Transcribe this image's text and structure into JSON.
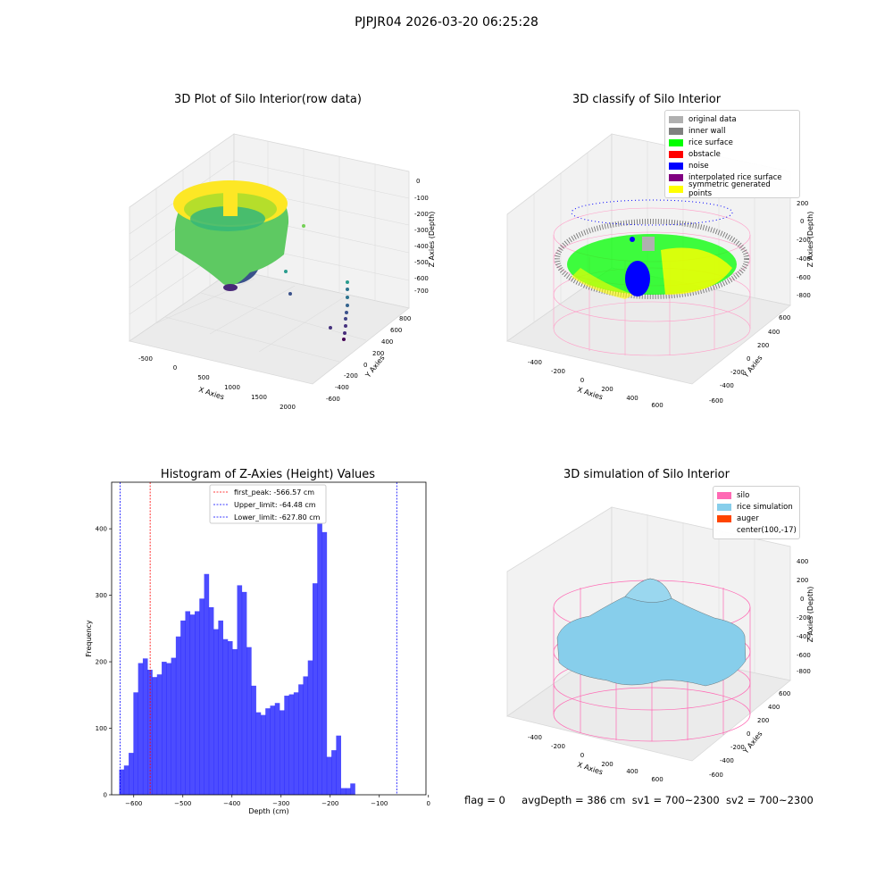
{
  "suptitle": "PJPJR04 2026-03-20 06:25:28",
  "status": {
    "flag": "flag = 0",
    "avg_depth": "avgDepth = 386 cm",
    "sv1": "sv1 = 700~2300",
    "sv2": "sv2 = 700~2300"
  },
  "panels": {
    "raw": {
      "title": "3D Plot of Silo Interior(row data)",
      "xlabel": "X Axies",
      "ylabel": "Y Axies",
      "zlabel": "Z Axies (Depth)",
      "x_ticks": [
        "-500",
        "0",
        "500",
        "1000",
        "1500",
        "2000"
      ],
      "y_ticks": [
        "800",
        "600",
        "400",
        "200",
        "0",
        "-200",
        "-400",
        "-600"
      ],
      "z_ticks": [
        "0",
        "-100",
        "-200",
        "-300",
        "-400",
        "-500",
        "-600",
        "-700"
      ]
    },
    "classify": {
      "title": "3D classify of Silo Interior",
      "xlabel": "X Axies",
      "ylabel": "Y Axies",
      "zlabel": "Z Axies (Depth)",
      "x_ticks": [
        "-400",
        "-200",
        "0",
        "200",
        "400",
        "600"
      ],
      "y_ticks": [
        "600",
        "400",
        "200",
        "0",
        "-200",
        "-400",
        "-600"
      ],
      "z_ticks": [
        "200",
        "0",
        "-200",
        "-400",
        "-600",
        "-800"
      ],
      "legend": [
        {
          "label": "original data",
          "color": "#b0b0b0"
        },
        {
          "label": "inner wall",
          "color": "#808080"
        },
        {
          "label": "rice surface",
          "color": "#00ff00"
        },
        {
          "label": "obstacle",
          "color": "#ff0000"
        },
        {
          "label": "noise",
          "color": "#0000ff"
        },
        {
          "label": "interpolated rice surface",
          "color": "#800080"
        },
        {
          "label": "symmetric generated points",
          "color": "#ffff00"
        }
      ]
    },
    "simulation": {
      "title": "3D simulation of Silo Interior",
      "xlabel": "X Axies",
      "ylabel": "Y Axies",
      "zlabel": "Z Axies (Depth)",
      "x_ticks": [
        "-400",
        "-200",
        "0",
        "200",
        "400",
        "600"
      ],
      "y_ticks": [
        "600",
        "400",
        "200",
        "0",
        "-200",
        "-400",
        "-600"
      ],
      "z_ticks": [
        "400",
        "200",
        "0",
        "-200",
        "-400",
        "-600",
        "-800"
      ],
      "legend": [
        {
          "label": "silo",
          "color": "#ff69b4"
        },
        {
          "label": "rice simulation",
          "color": "#87ceeb"
        },
        {
          "label": "auger",
          "color": "#ff4500"
        },
        {
          "label": "center(100,-17)",
          "color": ""
        }
      ]
    }
  },
  "chart_data": {
    "type": "bar",
    "title": "Histogram of Z-Axies (Height) Values",
    "xlabel": "Depth (cm)",
    "ylabel": "Frequency",
    "xlim": [
      -645,
      -5
    ],
    "ylim": [
      0,
      470
    ],
    "x_ticks": [
      -600,
      -500,
      -400,
      -300,
      -200,
      -100,
      0
    ],
    "y_ticks": [
      0,
      100,
      200,
      300,
      400
    ],
    "bar_color": "#0000ff",
    "bin_start": -629.5,
    "bin_width": 9.6,
    "values": [
      38,
      44,
      63,
      154,
      198,
      205,
      188,
      177,
      181,
      200,
      198,
      206,
      238,
      262,
      276,
      271,
      276,
      295,
      332,
      282,
      249,
      262,
      234,
      231,
      219,
      315,
      305,
      222,
      164,
      124,
      120,
      130,
      134,
      138,
      127,
      149,
      151,
      154,
      166,
      178,
      202,
      318,
      448,
      395,
      57,
      67,
      89,
      10,
      10,
      17
    ],
    "vlines": [
      {
        "label": "first_peak: -566.57 cm",
        "x": -566.57,
        "color": "#ff0000"
      },
      {
        "label": "Upper_limit: -64.48 cm",
        "x": -64.48,
        "color": "#0000ff"
      },
      {
        "label": "Lower_limit: -627.80 cm",
        "x": -627.8,
        "color": "#0000ff"
      }
    ],
    "legend_position": "upper center"
  }
}
